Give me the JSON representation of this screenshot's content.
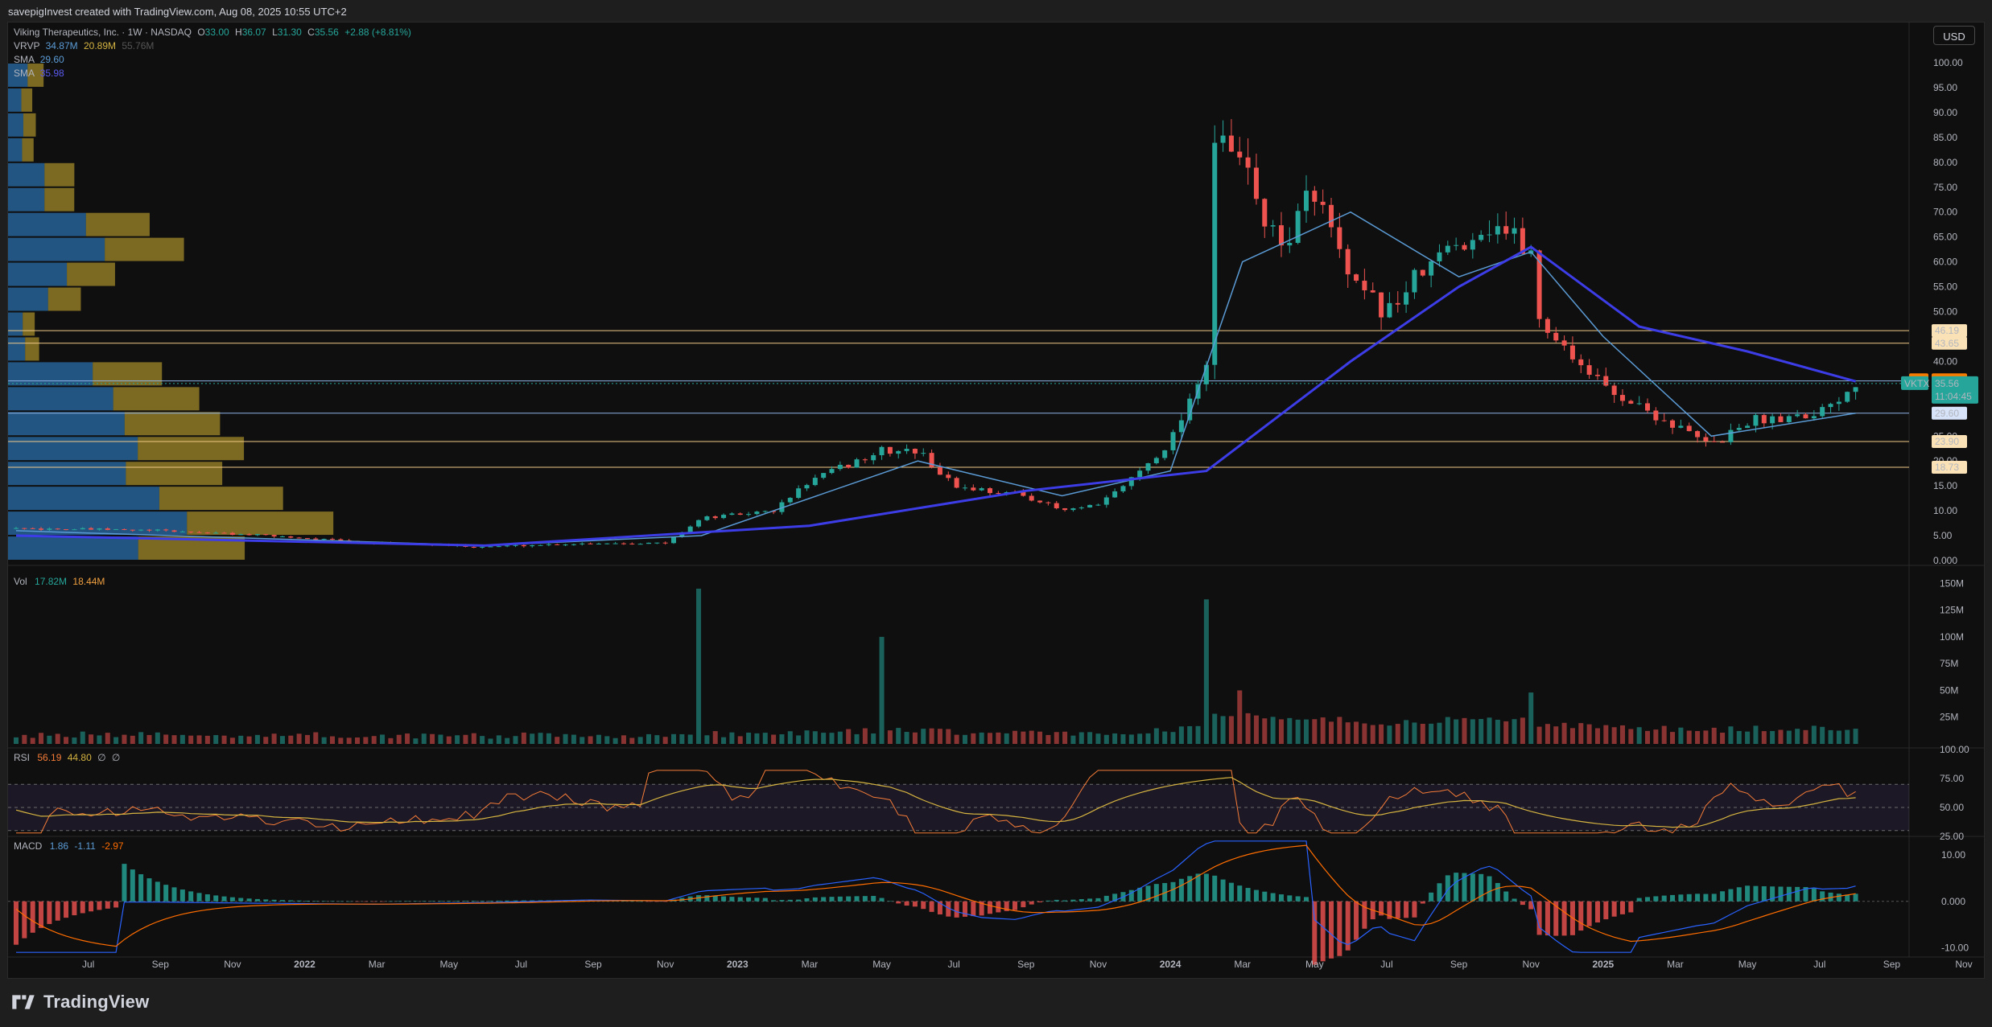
{
  "header": {
    "attribution": "savepigInvest created with TradingView.com, Aug 08, 2025 10:55 UTC+2"
  },
  "toolbar": {
    "currency_label": "USD"
  },
  "footer": {
    "brand": "TradingView"
  },
  "symbol_legend": {
    "title": "Viking Therapeutics, Inc. · 1W · NASDAQ",
    "open_label": "O",
    "open": "33.00",
    "high_label": "H",
    "high": "36.07",
    "low_label": "L",
    "low": "31.30",
    "close_label": "C",
    "close": "35.56",
    "change": "+2.88 (+8.81%)"
  },
  "indicators": {
    "vrvp": {
      "label": "VRVP",
      "v1": "34.87M",
      "v2": "20.89M",
      "v3": "55.76M"
    },
    "sma1": {
      "label": "SMA",
      "value": "29.60"
    },
    "sma2": {
      "label": "SMA",
      "value": "35.98"
    },
    "vol": {
      "label": "Vol",
      "v1": "17.82M",
      "v2": "18.44M"
    },
    "rsi": {
      "label": "RSI",
      "v1": "56.19",
      "v2": "44.80",
      "v3": "∅",
      "v4": "∅"
    },
    "macd": {
      "label": "MACD",
      "v1": "1.86",
      "v2": "-1.11",
      "v3": "-2.97"
    }
  },
  "colors": {
    "up": "#26a69a",
    "down": "#ef5350",
    "sma_fast": "#5b9bd5",
    "sma_slow": "#3d3de8",
    "vrvp_up": "#2a6eaa",
    "vrvp_down": "#a28a2a",
    "hline_orange": "#f0c987",
    "hline_blue": "#8fb3e6",
    "rsi": "#f57c38",
    "rsi_ma": "#d4b341",
    "macd": "#2962ff",
    "signal": "#ff6d00"
  },
  "chart_data": [
    {
      "type": "candlestick",
      "title": "Viking Therapeutics, Inc. · 1W · NASDAQ",
      "y_ticks": [
        "100.00",
        "95.00",
        "90.00",
        "85.00",
        "80.00",
        "75.00",
        "70.00",
        "65.00",
        "60.00",
        "55.00",
        "50.00",
        "45.00",
        "40.00",
        "35.00",
        "30.00",
        "25.00",
        "20.00",
        "15.00",
        "10.00",
        "5.00",
        "0.000"
      ],
      "ylim": [
        0,
        100
      ],
      "x_ticks": [
        "Jul",
        "Sep",
        "Nov",
        "2022",
        "Mar",
        "May",
        "Jul",
        "Sep",
        "Nov",
        "2023",
        "Mar",
        "May",
        "Jul",
        "Sep",
        "Nov",
        "2024",
        "Mar",
        "May",
        "Jul",
        "Sep",
        "Nov",
        "2025",
        "Mar",
        "May",
        "Jul",
        "Sep",
        "Nov"
      ],
      "x_range": [
        "2021-05",
        "2025-11"
      ],
      "price_path": [
        [
          "2021-05",
          6.5
        ],
        [
          "2021-09",
          6.0
        ],
        [
          "2021-12",
          5.0
        ],
        [
          "2022-03",
          3.5
        ],
        [
          "2022-06",
          2.8
        ],
        [
          "2022-09",
          3.5
        ],
        [
          "2022-11",
          3.5
        ],
        [
          "2022-12",
          8.5
        ],
        [
          "2023-02",
          10
        ],
        [
          "2023-03",
          16
        ],
        [
          "2023-05",
          22
        ],
        [
          "2023-06",
          22
        ],
        [
          "2023-07",
          15
        ],
        [
          "2023-09",
          13
        ],
        [
          "2023-10",
          10
        ],
        [
          "2023-11",
          11
        ],
        [
          "2023-12",
          17
        ],
        [
          "2024-01",
          24
        ],
        [
          "2024-02",
          40
        ],
        [
          "2024-02",
          85
        ],
        [
          "2024-03",
          80
        ],
        [
          "2024-04",
          62
        ],
        [
          "2024-05",
          75
        ],
        [
          "2024-06",
          55
        ],
        [
          "2024-07",
          50
        ],
        [
          "2024-08",
          58
        ],
        [
          "2024-09",
          64
        ],
        [
          "2024-10",
          68
        ],
        [
          "2024-11",
          62
        ],
        [
          "2024-11",
          50
        ],
        [
          "2025-01",
          35
        ],
        [
          "2025-03",
          27
        ],
        [
          "2025-04",
          23
        ],
        [
          "2025-05",
          28
        ],
        [
          "2025-07",
          30
        ],
        [
          "2025-08",
          35.56
        ]
      ],
      "sma_fast_path": [
        [
          "2021-05",
          6
        ],
        [
          "2022-06",
          3
        ],
        [
          "2022-12",
          5
        ],
        [
          "2023-06",
          20
        ],
        [
          "2023-10",
          13
        ],
        [
          "2024-01",
          18
        ],
        [
          "2024-03",
          60
        ],
        [
          "2024-06",
          70
        ],
        [
          "2024-09",
          57
        ],
        [
          "2024-11",
          62
        ],
        [
          "2025-01",
          45
        ],
        [
          "2025-04",
          25
        ],
        [
          "2025-08",
          29.6
        ]
      ],
      "sma_slow_path": [
        [
          "2021-05",
          5
        ],
        [
          "2022-06",
          3
        ],
        [
          "2023-03",
          7
        ],
        [
          "2023-09",
          14
        ],
        [
          "2024-02",
          18
        ],
        [
          "2024-06",
          40
        ],
        [
          "2024-09",
          55
        ],
        [
          "2024-11",
          63
        ],
        [
          "2025-02",
          47
        ],
        [
          "2025-05",
          42
        ],
        [
          "2025-08",
          36
        ]
      ],
      "horizontal_levels": [
        {
          "value": 46.19,
          "label": "46.19",
          "color": "orange"
        },
        {
          "value": 43.65,
          "label": "43.65",
          "color": "orange"
        },
        {
          "value": 36.09,
          "label": "36.09",
          "color": "blue"
        },
        {
          "value": 29.6,
          "label": "29.60",
          "color": "blue"
        },
        {
          "value": 23.9,
          "label": "23.90",
          "color": "orange"
        },
        {
          "value": 18.73,
          "label": "18.73",
          "color": "orange"
        }
      ],
      "price_tags": [
        {
          "label": "Pre",
          "value": "36.30"
        },
        {
          "label": "VKTX",
          "value": "35.56",
          "countdown": "11:04:45"
        }
      ]
    },
    {
      "type": "bar",
      "title": "Vol",
      "y_ticks": [
        "150M",
        "125M",
        "100M",
        "75M",
        "50M",
        "25M"
      ],
      "ylim": [
        0,
        160
      ],
      "spikes_millions": [
        [
          "2022-12",
          145
        ],
        [
          "2023-05",
          100
        ],
        [
          "2024-02",
          135
        ],
        [
          "2024-03",
          50
        ],
        [
          "2024-11",
          48
        ]
      ]
    },
    {
      "type": "line",
      "title": "RSI",
      "y_ticks": [
        "100.00",
        "75.00",
        "50.00",
        "25.00"
      ],
      "ylim": [
        25,
        100
      ],
      "bands": [
        30,
        70
      ]
    },
    {
      "type": "line",
      "title": "MACD",
      "y_ticks": [
        "10.00",
        "0.000",
        "-10.00"
      ],
      "ylim": [
        -12,
        14
      ]
    }
  ]
}
